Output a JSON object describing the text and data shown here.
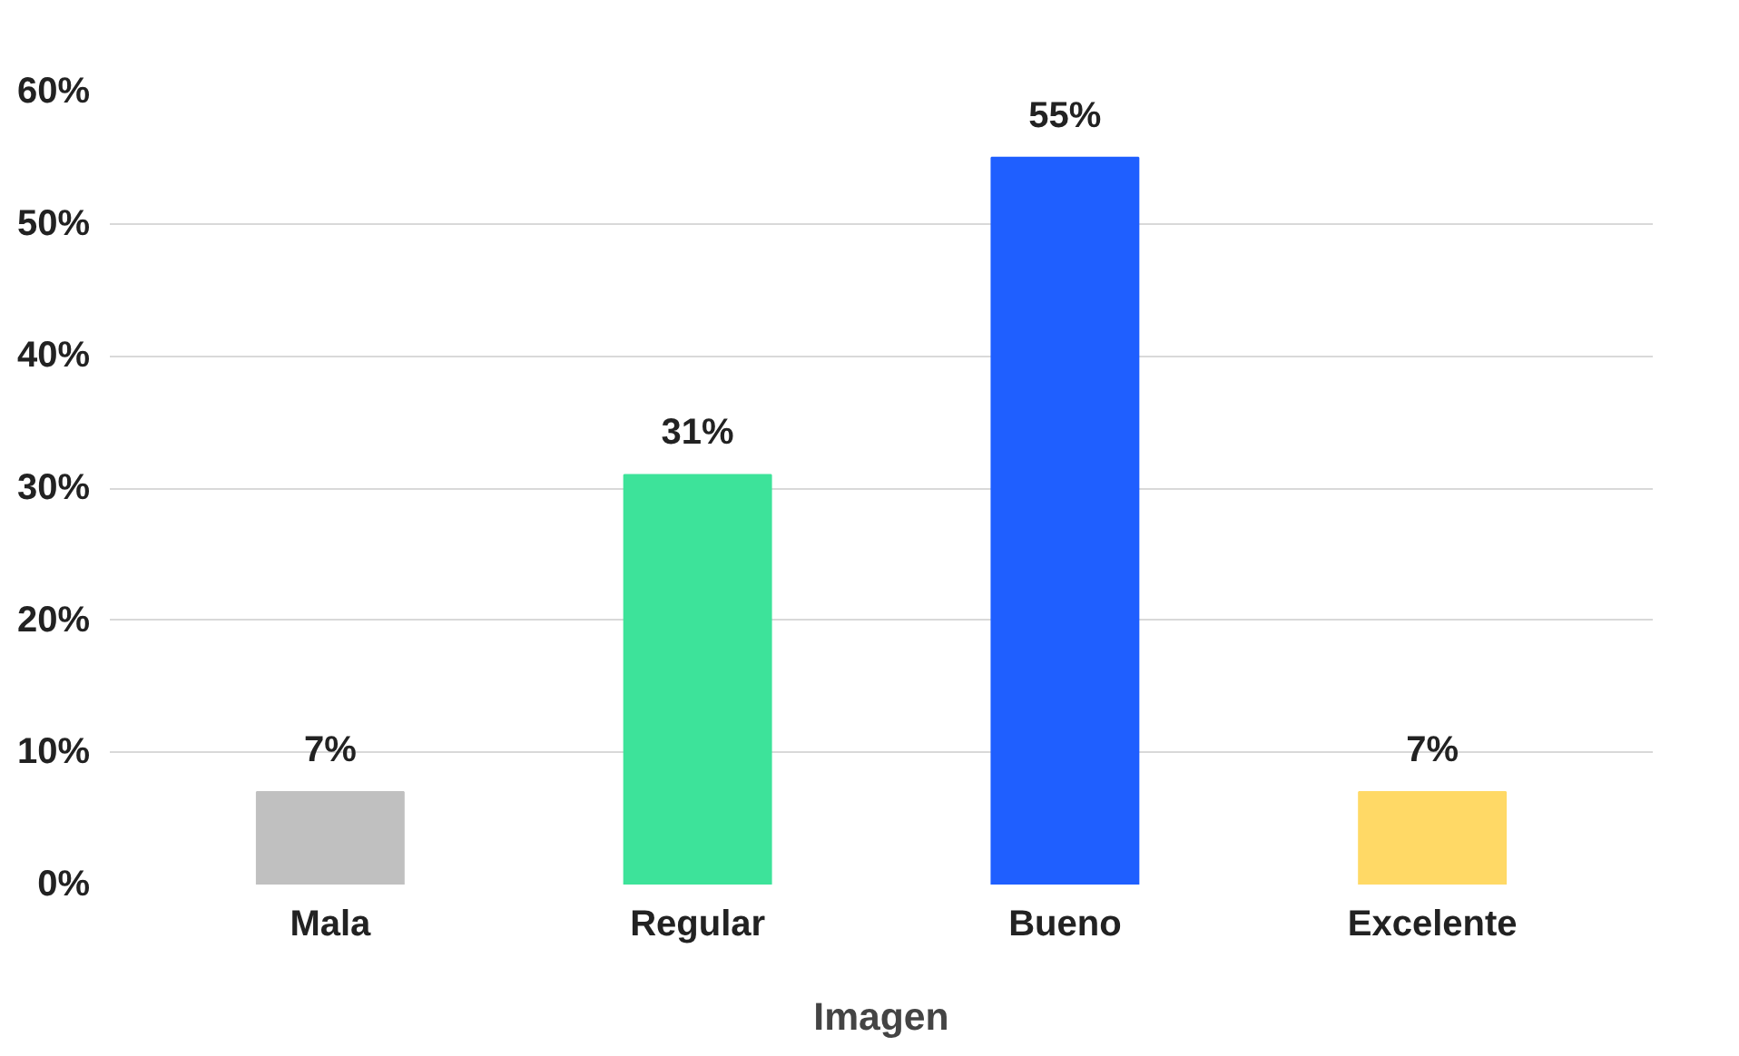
{
  "chart_data": {
    "type": "bar",
    "xlabel": "Imagen",
    "categories": [
      "Mala",
      "Regular",
      "Bueno",
      "Excelente"
    ],
    "values": [
      7,
      31,
      55,
      7
    ],
    "colors": [
      "#c0c0c0",
      "#3de39a",
      "#1f5fff",
      "#ffd966"
    ],
    "value_labels": [
      "7%",
      "31%",
      "55%",
      "7%"
    ],
    "ylim": [
      0,
      60
    ],
    "yticks": [
      {
        "value": 0,
        "label": "0%"
      },
      {
        "value": 10,
        "label": "10%"
      },
      {
        "value": 20,
        "label": "20%"
      },
      {
        "value": 30,
        "label": "30%"
      },
      {
        "value": 40,
        "label": "40%"
      },
      {
        "value": 50,
        "label": "50%"
      },
      {
        "value": 60,
        "label": "60%"
      }
    ],
    "grid": "y"
  }
}
